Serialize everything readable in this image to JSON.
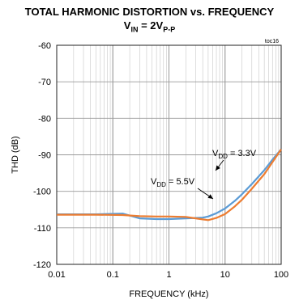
{
  "title_line1": "TOTAL HARMONIC DISTORTION vs. FREQUENCY",
  "title_line2": {
    "v": "V",
    "sub_in": "IN",
    "eq": " = 2V",
    "sub_pp": "P-P"
  },
  "chart_data": {
    "type": "line",
    "title": "TOTAL HARMONIC DISTORTION vs. FREQUENCY",
    "xlabel": "FREQUENCY (kHz)",
    "ylabel": "THD (dB)",
    "x_scale": "log",
    "xlim": [
      0.01,
      100
    ],
    "ylim": [
      -120,
      -60
    ],
    "x_ticks": [
      "0.01",
      "0.1",
      "1",
      "10",
      "100"
    ],
    "y_ticks": [
      "-60",
      "-70",
      "-80",
      "-90",
      "-100",
      "-110",
      "-120"
    ],
    "grid": true,
    "corner_label": "toc16",
    "series": [
      {
        "name": "VDD = 3.3V",
        "label_main": "V",
        "label_sub": "DD",
        "label_rest": " = 3.3V",
        "color": "#5b9bd5",
        "x": [
          0.01,
          0.05,
          0.15,
          0.3,
          0.6,
          1,
          2,
          3,
          4,
          5,
          7,
          10,
          15,
          20,
          30,
          50,
          70,
          100
        ],
        "y": [
          -106.3,
          -106.3,
          -106.1,
          -107.4,
          -107.6,
          -107.6,
          -107.4,
          -107.3,
          -107.2,
          -106.9,
          -106.0,
          -104.7,
          -102.6,
          -100.8,
          -98.0,
          -94.2,
          -91.3,
          -88.5
        ]
      },
      {
        "name": "VDD = 5.5V",
        "label_main": "V",
        "label_sub": "DD",
        "label_rest": " = 5.5V",
        "color": "#ed7d31",
        "x": [
          0.01,
          0.05,
          0.15,
          0.3,
          0.6,
          1,
          2,
          3,
          4,
          5,
          7,
          10,
          15,
          20,
          30,
          50,
          70,
          100
        ],
        "y": [
          -106.4,
          -106.4,
          -106.5,
          -106.8,
          -106.9,
          -106.9,
          -107.0,
          -107.4,
          -107.7,
          -107.9,
          -107.3,
          -106.2,
          -104.1,
          -102.3,
          -99.3,
          -95.3,
          -92.0,
          -88.5
        ]
      }
    ]
  }
}
